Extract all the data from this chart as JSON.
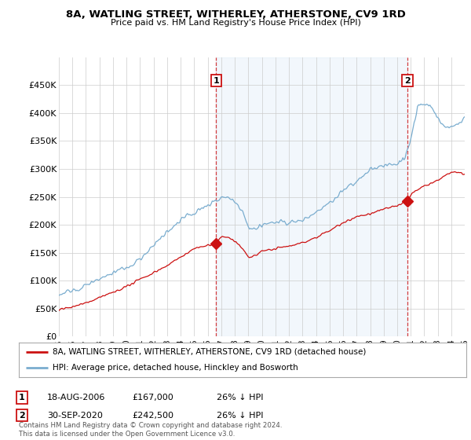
{
  "title": "8A, WATLING STREET, WITHERLEY, ATHERSTONE, CV9 1RD",
  "subtitle": "Price paid vs. HM Land Registry's House Price Index (HPI)",
  "ylim": [
    0,
    500000
  ],
  "yticks": [
    0,
    50000,
    100000,
    150000,
    200000,
    250000,
    300000,
    350000,
    400000,
    450000
  ],
  "ytick_labels": [
    "£0",
    "£50K",
    "£100K",
    "£150K",
    "£200K",
    "£250K",
    "£300K",
    "£350K",
    "£400K",
    "£450K"
  ],
  "hpi_color": "#7aadcf",
  "price_color": "#cc1111",
  "legend_label_red": "8A, WATLING STREET, WITHERLEY, ATHERSTONE, CV9 1RD (detached house)",
  "legend_label_blue": "HPI: Average price, detached house, Hinckley and Bosworth",
  "sale1_label": "1",
  "sale1_date": "18-AUG-2006",
  "sale1_price": "£167,000",
  "sale1_info": "26% ↓ HPI",
  "sale1_year": 2006.625,
  "sale1_value": 167000,
  "sale2_label": "2",
  "sale2_date": "30-SEP-2020",
  "sale2_price": "£242,500",
  "sale2_info": "26% ↓ HPI",
  "sale2_year": 2020.75,
  "sale2_value": 242500,
  "vline_color": "#cc1111",
  "fill_color": "#ddeeff",
  "background_color": "#ffffff",
  "grid_color": "#cccccc",
  "footer_text": "Contains HM Land Registry data © Crown copyright and database right 2024.\nThis data is licensed under the Open Government Licence v3.0."
}
